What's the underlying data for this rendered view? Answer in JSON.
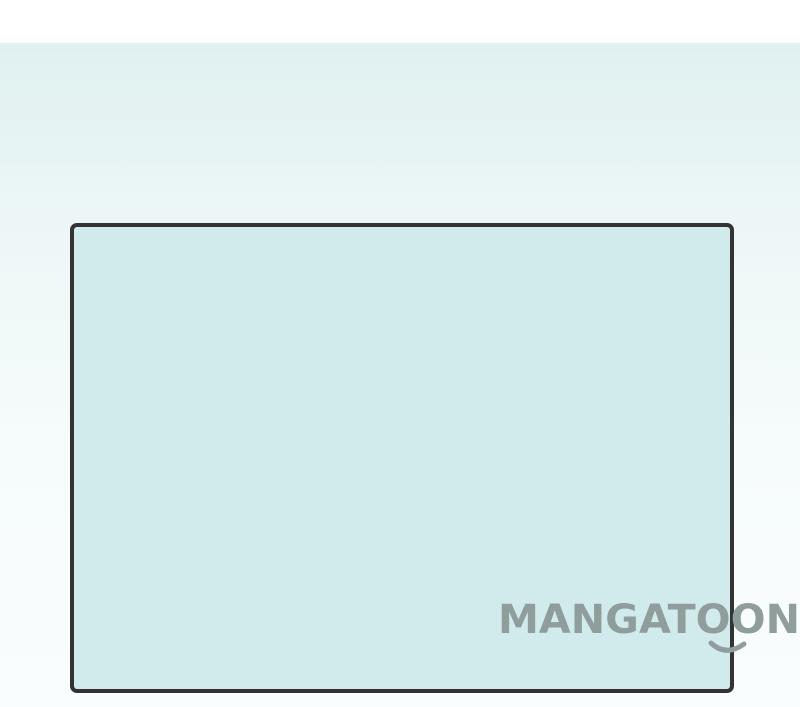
{
  "watermark": {
    "text": "MANGATOON",
    "color": "#8f9d9d"
  },
  "colors": {
    "panel_fill": "#d1eaec",
    "panel_border": "#333333",
    "background_top": "#e0f0f0",
    "background_bottom": "#fafdfd"
  }
}
